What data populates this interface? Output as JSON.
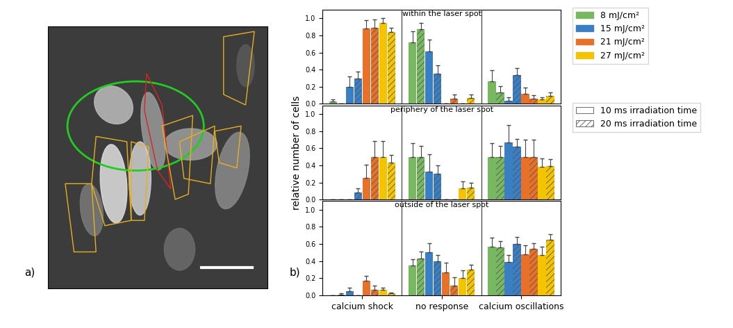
{
  "image_panel": {
    "label": "a)"
  },
  "figure_label": "b)",
  "ylabel": "relative number of cells",
  "chart_data": [
    {
      "type": "bar",
      "title": "within the laser spot",
      "categories": [
        "calcium shock",
        "no response",
        "calcium oscillations"
      ],
      "ylim": [
        0,
        1.1
      ],
      "yticks": [
        {
          "value": 0,
          "label": "0.0"
        },
        {
          "value": 0.2,
          "label": "0.2"
        },
        {
          "value": 0.4,
          "label": "0.4"
        },
        {
          "value": 0.6,
          "label": "0.6"
        },
        {
          "value": 0.8,
          "label": "0.8"
        },
        {
          "value": 1.0,
          "label": "1.0"
        }
      ],
      "tick_labels": "y",
      "series": [
        {
          "fluence": "8 mJ/cm²",
          "irradiation_time": "10 ms irradiation time",
          "color": "#78b860",
          "values": [
            0.03,
            0.72,
            0.26
          ],
          "errors": [
            0.02,
            0.13,
            0.13
          ]
        },
        {
          "fluence": "8 mJ/cm²",
          "irradiation_time": "20 ms irradiation time",
          "color": "#78b860",
          "values": [
            0,
            0.87,
            0.13
          ],
          "errors": [
            0,
            0.08,
            0.08
          ]
        },
        {
          "fluence": "15 mJ/cm²",
          "irradiation_time": "10 ms irradiation time",
          "color": "#3a7fc4",
          "values": [
            0.2,
            0.61,
            0.04
          ],
          "errors": [
            0.12,
            0.14,
            0.04
          ]
        },
        {
          "fluence": "15 mJ/cm²",
          "irradiation_time": "20 ms irradiation time",
          "color": "#3a7fc4",
          "values": [
            0.3,
            0.35,
            0.34
          ],
          "errors": [
            0.08,
            0.1,
            0.08
          ]
        },
        {
          "fluence": "21 mJ/cm²",
          "irradiation_time": "10 ms irradiation time",
          "color": "#e8712a",
          "values": [
            0.88,
            0,
            0.12
          ],
          "errors": [
            0.1,
            0,
            0.07
          ]
        },
        {
          "fluence": "21 mJ/cm²",
          "irradiation_time": "20 ms irradiation time",
          "color": "#e8712a",
          "values": [
            0.89,
            0.06,
            0.06
          ],
          "errors": [
            0.1,
            0.05,
            0.04
          ]
        },
        {
          "fluence": "27 mJ/cm²",
          "irradiation_time": "10 ms irradiation time",
          "color": "#f5c400",
          "values": [
            0.95,
            0,
            0.05
          ],
          "errors": [
            0.05,
            0,
            0.03
          ]
        },
        {
          "fluence": "27 mJ/cm²",
          "irradiation_time": "20 ms irradiation time",
          "color": "#f5c400",
          "values": [
            0.84,
            0.07,
            0.09
          ],
          "errors": [
            0.05,
            0.04,
            0.04
          ]
        }
      ]
    },
    {
      "type": "bar",
      "title": "periphery of the laser spot",
      "categories": [
        "calcium shock",
        "no response",
        "calcium oscillations"
      ],
      "ylim": [
        0,
        1.1
      ],
      "yticks": [
        {
          "value": 0,
          "label": "0.0"
        },
        {
          "value": 0.2,
          "label": "0.2"
        },
        {
          "value": 0.4,
          "label": "0.4"
        },
        {
          "value": 0.6,
          "label": "0.6"
        },
        {
          "value": 0.8,
          "label": "0.8"
        },
        {
          "value": 1.0,
          "label": "1.0"
        }
      ],
      "tick_labels": "y",
      "series": [
        {
          "fluence": "8 mJ/cm²",
          "irradiation_time": "10 ms irradiation time",
          "color": "#78b860",
          "values": [
            0,
            0.5,
            0.5
          ],
          "errors": [
            0,
            0.16,
            0.16
          ]
        },
        {
          "fluence": "8 mJ/cm²",
          "irradiation_time": "20 ms irradiation time",
          "color": "#78b860",
          "values": [
            0,
            0.5,
            0.5
          ],
          "errors": [
            0,
            0.13,
            0.13
          ]
        },
        {
          "fluence": "15 mJ/cm²",
          "irradiation_time": "10 ms irradiation time",
          "color": "#3a7fc4",
          "values": [
            0,
            0.33,
            0.67
          ],
          "errors": [
            0,
            0.2,
            0.2
          ]
        },
        {
          "fluence": "15 mJ/cm²",
          "irradiation_time": "20 ms irradiation time",
          "color": "#3a7fc4",
          "values": [
            0.08,
            0.3,
            0.62
          ],
          "errors": [
            0.05,
            0.1,
            0.09
          ]
        },
        {
          "fluence": "21 mJ/cm²",
          "irradiation_time": "10 ms irradiation time",
          "color": "#e8712a",
          "values": [
            0.25,
            0,
            0.5
          ],
          "errors": [
            0.16,
            0,
            0.2
          ]
        },
        {
          "fluence": "21 mJ/cm²",
          "irradiation_time": "20 ms irradiation time",
          "color": "#e8712a",
          "values": [
            0.5,
            0,
            0.5
          ],
          "errors": [
            0.18,
            0,
            0.2
          ]
        },
        {
          "fluence": "27 mJ/cm²",
          "irradiation_time": "10 ms irradiation time",
          "color": "#f5c400",
          "values": [
            0.5,
            0.13,
            0.38
          ],
          "errors": [
            0.18,
            0.08,
            0.1
          ]
        },
        {
          "fluence": "27 mJ/cm²",
          "irradiation_time": "20 ms irradiation time",
          "color": "#f5c400",
          "values": [
            0.43,
            0.14,
            0.39
          ],
          "errors": [
            0.09,
            0.06,
            0.08
          ]
        }
      ]
    },
    {
      "type": "bar",
      "title": "outside of the laser spot",
      "categories": [
        "calcium shock",
        "no response",
        "calcium oscillations"
      ],
      "ylim": [
        0,
        1.1
      ],
      "yticks": [
        {
          "value": 0,
          "label": "0.0"
        },
        {
          "value": 0.2,
          "label": "0.2"
        },
        {
          "value": 0.4,
          "label": "0.4"
        },
        {
          "value": 0.6,
          "label": "0.6"
        },
        {
          "value": 0.8,
          "label": "0.8"
        },
        {
          "value": 1.0,
          "label": "1.0"
        }
      ],
      "series": [
        {
          "fluence": "8 mJ/cm²",
          "irradiation_time": "10 ms irradiation time",
          "color": "#78b860",
          "values": [
            0,
            0.35,
            0.57
          ],
          "errors": [
            0,
            0.07,
            0.1
          ]
        },
        {
          "fluence": "8 mJ/cm²",
          "irradiation_time": "20 ms irradiation time",
          "color": "#78b860",
          "values": [
            0.01,
            0.43,
            0.56
          ],
          "errors": [
            0.01,
            0.08,
            0.07
          ]
        },
        {
          "fluence": "15 mJ/cm²",
          "irradiation_time": "10 ms irradiation time",
          "color": "#3a7fc4",
          "values": [
            0.05,
            0.5,
            0.39
          ],
          "errors": [
            0.04,
            0.11,
            0.08
          ]
        },
        {
          "fluence": "15 mJ/cm²",
          "irradiation_time": "20 ms irradiation time",
          "color": "#3a7fc4",
          "values": [
            0,
            0.4,
            0.6
          ],
          "errors": [
            0,
            0.07,
            0.08
          ]
        },
        {
          "fluence": "21 mJ/cm²",
          "irradiation_time": "10 ms irradiation time",
          "color": "#e8712a",
          "values": [
            0.17,
            0.27,
            0.48
          ],
          "errors": [
            0.06,
            0.11,
            0.1
          ]
        },
        {
          "fluence": "21 mJ/cm²",
          "irradiation_time": "20 ms irradiation time",
          "color": "#e8712a",
          "values": [
            0.06,
            0.11,
            0.54
          ],
          "errors": [
            0.05,
            0.1,
            0.07
          ]
        },
        {
          "fluence": "27 mJ/cm²",
          "irradiation_time": "10 ms irradiation time",
          "color": "#f5c400",
          "values": [
            0.06,
            0.2,
            0.47
          ],
          "errors": [
            0.03,
            0.09,
            0.1
          ]
        },
        {
          "fluence": "27 mJ/cm²",
          "irradiation_time": "20 ms irradiation time",
          "color": "#f5c400",
          "values": [
            0.02,
            0.3,
            0.65
          ],
          "errors": [
            0.01,
            0.06,
            0.06
          ]
        }
      ]
    }
  ]
}
